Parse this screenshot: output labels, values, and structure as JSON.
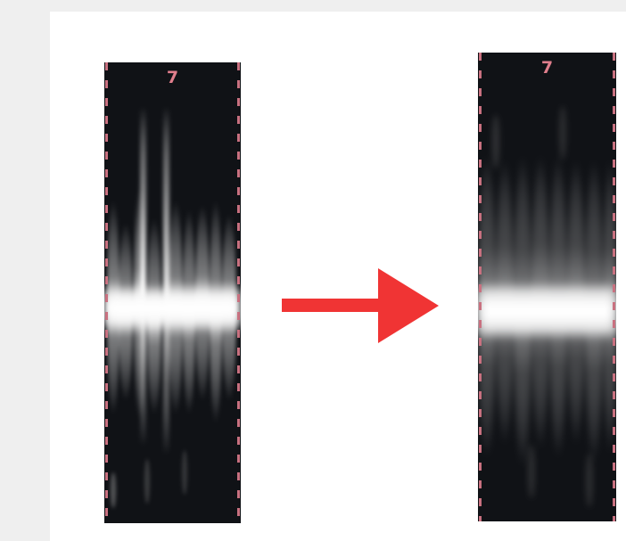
{
  "panels": [
    {
      "id": "before",
      "label": "7"
    },
    {
      "id": "after",
      "label": "7"
    }
  ],
  "colors": {
    "panel_background": "#101216",
    "label": "#e07e8c",
    "dashed_border": "#c97180",
    "arrow": "#f03434",
    "page_background": "#efefef",
    "canvas_background": "#ffffff"
  },
  "icons": {
    "transition": "right-arrow-icon"
  }
}
